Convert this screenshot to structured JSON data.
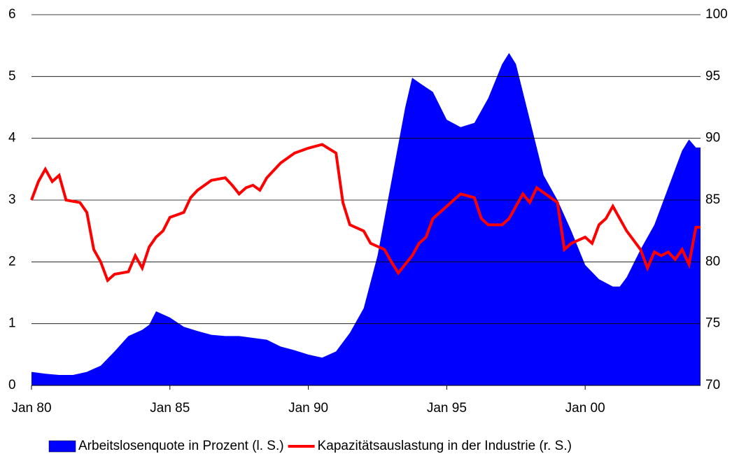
{
  "chart_data": {
    "type": "area-line",
    "xlim": [
      "1980-01",
      "2004-03"
    ],
    "xticks": [
      {
        "value": "1980-01",
        "label": "Jan 80"
      },
      {
        "value": "1985-01",
        "label": "Jan 85"
      },
      {
        "value": "1990-01",
        "label": "Jan 90"
      },
      {
        "value": "1995-01",
        "label": "Jan 95"
      },
      {
        "value": "2000-01",
        "label": "Jan 00"
      }
    ],
    "ylim": [
      0,
      6
    ],
    "yticks": [
      0,
      1,
      2,
      3,
      4,
      5,
      6
    ],
    "y2lim": [
      70,
      100
    ],
    "y2ticks": [
      70,
      75,
      80,
      85,
      90,
      95,
      100
    ],
    "grid": true,
    "legend": "bottom",
    "series": [
      {
        "name": "Arbeitslosenquote in Prozent (l. S.)",
        "color": "#0000ff",
        "kind": "area",
        "x": [
          "1980-01",
          "1980-07",
          "1981-01",
          "1981-07",
          "1982-01",
          "1982-07",
          "1983-01",
          "1983-07",
          "1984-01",
          "1984-04",
          "1984-07",
          "1985-01",
          "1985-07",
          "1986-01",
          "1986-07",
          "1987-01",
          "1987-07",
          "1988-01",
          "1988-07",
          "1989-01",
          "1989-07",
          "1990-01",
          "1990-07",
          "1991-01",
          "1991-07",
          "1992-01",
          "1992-07",
          "1993-01",
          "1993-07",
          "1993-10",
          "1994-01",
          "1994-07",
          "1995-01",
          "1995-07",
          "1996-01",
          "1996-07",
          "1997-01",
          "1997-04",
          "1997-07",
          "1998-01",
          "1998-07",
          "1999-01",
          "1999-07",
          "2000-01",
          "2000-07",
          "2001-01",
          "2001-04",
          "2001-07",
          "2002-01",
          "2002-07",
          "2003-01",
          "2003-07",
          "2003-10",
          "2004-01",
          "2004-03"
        ],
        "values": [
          0.22,
          0.19,
          0.17,
          0.17,
          0.22,
          0.32,
          0.55,
          0.8,
          0.9,
          0.98,
          1.2,
          1.1,
          0.95,
          0.88,
          0.82,
          0.8,
          0.8,
          0.77,
          0.74,
          0.63,
          0.57,
          0.5,
          0.45,
          0.55,
          0.85,
          1.25,
          2.1,
          3.3,
          4.5,
          4.98,
          4.9,
          4.75,
          4.3,
          4.18,
          4.25,
          4.65,
          5.2,
          5.38,
          5.2,
          4.3,
          3.4,
          3.0,
          2.5,
          1.95,
          1.72,
          1.6,
          1.6,
          1.75,
          2.2,
          2.6,
          3.2,
          3.8,
          3.98,
          3.85,
          3.85
        ]
      },
      {
        "name": "Kapazitätsauslastung in der Industrie (r. S.)",
        "color": "#ff0000",
        "kind": "line",
        "axis": "y2",
        "x": [
          "1980-01",
          "1980-04",
          "1980-07",
          "1980-10",
          "1981-01",
          "1981-04",
          "1981-10",
          "1982-01",
          "1982-04",
          "1982-07",
          "1982-10",
          "1983-01",
          "1983-07",
          "1983-10",
          "1984-01",
          "1984-04",
          "1984-07",
          "1984-10",
          "1985-01",
          "1985-07",
          "1985-10",
          "1986-01",
          "1986-07",
          "1987-01",
          "1987-04",
          "1987-07",
          "1987-10",
          "1988-01",
          "1988-04",
          "1988-07",
          "1989-01",
          "1989-07",
          "1990-01",
          "1990-07",
          "1991-01",
          "1991-04",
          "1991-07",
          "1992-01",
          "1992-04",
          "1992-10",
          "1993-01",
          "1993-04",
          "1993-10",
          "1994-01",
          "1994-04",
          "1994-07",
          "1995-01",
          "1995-07",
          "1996-01",
          "1996-04",
          "1996-07",
          "1997-01",
          "1997-04",
          "1997-07",
          "1997-10",
          "1998-01",
          "1998-04",
          "1998-07",
          "1999-01",
          "1999-04",
          "1999-07",
          "2000-01",
          "2000-04",
          "2000-07",
          "2000-10",
          "2001-01",
          "2001-04",
          "2001-07",
          "2002-01",
          "2002-04",
          "2002-07",
          "2002-10",
          "2003-01",
          "2003-04",
          "2003-07",
          "2003-10",
          "2004-01",
          "2004-03"
        ],
        "values": [
          85,
          86.5,
          87.5,
          86.5,
          87,
          85,
          84.8,
          84,
          81,
          80,
          78.5,
          79,
          79.2,
          80.5,
          79.5,
          81.2,
          82,
          82.5,
          83.6,
          84,
          85.2,
          85.8,
          86.6,
          86.8,
          86.2,
          85.5,
          86,
          86.2,
          85.8,
          86.8,
          88,
          88.8,
          89.2,
          89.5,
          88.8,
          84.8,
          83,
          82.5,
          81.5,
          81,
          80,
          79.1,
          80.5,
          81.5,
          82,
          83.5,
          84.5,
          85.5,
          85.2,
          83.5,
          83,
          83,
          83.5,
          84.5,
          85.5,
          84.8,
          86,
          85.6,
          84.8,
          81,
          81.5,
          82,
          81.5,
          83,
          83.5,
          84.5,
          83.5,
          82.5,
          81,
          79.5,
          80.8,
          80.5,
          80.8,
          80.2,
          81,
          79.8,
          82.8,
          82.8
        ]
      }
    ]
  }
}
